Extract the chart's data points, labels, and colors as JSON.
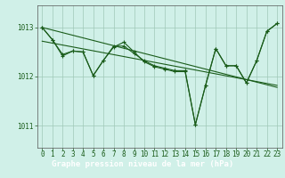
{
  "title": "Graphe pression niveau de la mer (hPa)",
  "bg_color": "#d0f0e8",
  "plot_bg_color": "#d0f0e8",
  "bottom_bar_color": "#3a7a3a",
  "label_bar_bg": "#2d6e2d",
  "line_color": "#1a5c1a",
  "marker_color": "#1a5c1a",
  "grid_color": "#a0c8b8",
  "xlim": [
    -0.5,
    23.5
  ],
  "ylim": [
    1010.55,
    1013.45
  ],
  "yticks": [
    1011,
    1012,
    1013
  ],
  "xticks": [
    0,
    1,
    2,
    3,
    4,
    5,
    6,
    7,
    8,
    9,
    10,
    11,
    12,
    13,
    14,
    15,
    16,
    17,
    18,
    19,
    20,
    21,
    22,
    23
  ],
  "series1": [
    1013.0,
    1012.75,
    1012.45,
    1012.52,
    1012.5,
    1012.02,
    1012.33,
    1012.62,
    1012.62,
    1012.47,
    1012.32,
    1012.22,
    1012.17,
    1012.12,
    1012.12,
    1011.02,
    1011.82,
    1012.57,
    1012.22,
    1012.22,
    1011.87,
    1012.32,
    1012.92,
    1013.08
  ],
  "series2": [
    1013.0,
    1012.75,
    1012.42,
    1012.52,
    1012.5,
    1012.02,
    1012.33,
    1012.6,
    1012.7,
    1012.5,
    1012.3,
    1012.2,
    1012.15,
    1012.1,
    1012.1,
    1011.02,
    1011.82,
    1012.57,
    1012.22,
    1012.22,
    1011.87,
    1012.32,
    1012.92,
    1013.08
  ],
  "trend1_x": [
    0,
    23
  ],
  "trend1_y": [
    1013.0,
    1011.78
  ],
  "trend2_x": [
    0,
    23
  ],
  "trend2_y": [
    1012.72,
    1011.82
  ],
  "tick_fontsize": 5.5,
  "title_fontsize": 6.5,
  "title_color": "#ffffff",
  "title_bg_color": "#2d6e2d"
}
